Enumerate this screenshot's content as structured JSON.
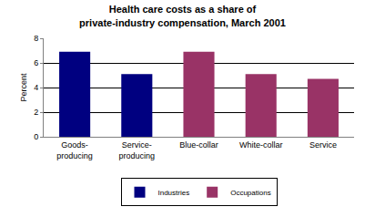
{
  "chart_data": {
    "type": "bar",
    "title": "Health care costs as a share of private-industry compensation, March 2001",
    "categories": [
      "Goods-producing",
      "Service-producing",
      "Blue-collar",
      "White-collar",
      "Service"
    ],
    "series": [
      {
        "name": "Industries",
        "color": "#000080",
        "values": [
          6.9,
          5.1,
          null,
          null,
          null
        ]
      },
      {
        "name": "Occupations",
        "color": "#993366",
        "values": [
          null,
          null,
          6.9,
          5.1,
          4.7
        ]
      }
    ],
    "y_label": "Percent",
    "ylim": [
      0,
      8
    ],
    "yticks": [
      0,
      2,
      4,
      6,
      8
    ],
    "grid": true,
    "legend": "bottom"
  }
}
